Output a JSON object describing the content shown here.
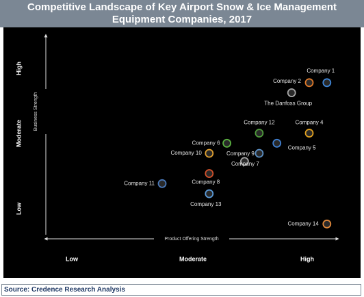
{
  "chart_data": {
    "type": "scatter",
    "title": "Competitive Landscape of Key Airport Snow & Ice Management Equipment Companies, 2017",
    "x_label": "Product Offering Strength",
    "y_label": "Business Strength",
    "x_categories": [
      "Low",
      "Moderate",
      "High"
    ],
    "y_categories": [
      "Low",
      "Moderate",
      "High"
    ],
    "xlim": [
      0,
      100
    ],
    "ylim": [
      0,
      100
    ],
    "labels": [
      "Company 1",
      "Company 2",
      "The Danfoss Group",
      "Company 12",
      "Company 4",
      "Company 6",
      "Company 5",
      "Company 9",
      "Company 10",
      "Company 7",
      "Company 8",
      "Company 11",
      "Company 13",
      "Company 14"
    ],
    "x": [
      96,
      90,
      84,
      73,
      90,
      62,
      79,
      73,
      56,
      68,
      56,
      40,
      56,
      96
    ],
    "values": [
      76,
      76,
      71,
      51,
      51,
      46,
      46,
      41,
      41,
      37,
      31,
      26,
      21,
      6
    ],
    "colors": [
      "#3f86d8",
      "#e07a2a",
      "#a6a6a6",
      "#4f9a3c",
      "#e0a020",
      "#5ab040",
      "#3f7fd0",
      "#5b8fc4",
      "#e0a030",
      "#a6a6a6",
      "#d0502a",
      "#4a78b8",
      "#5a9ad8",
      "#e0883a"
    ],
    "source": "Source: Credence Research Analysis"
  }
}
